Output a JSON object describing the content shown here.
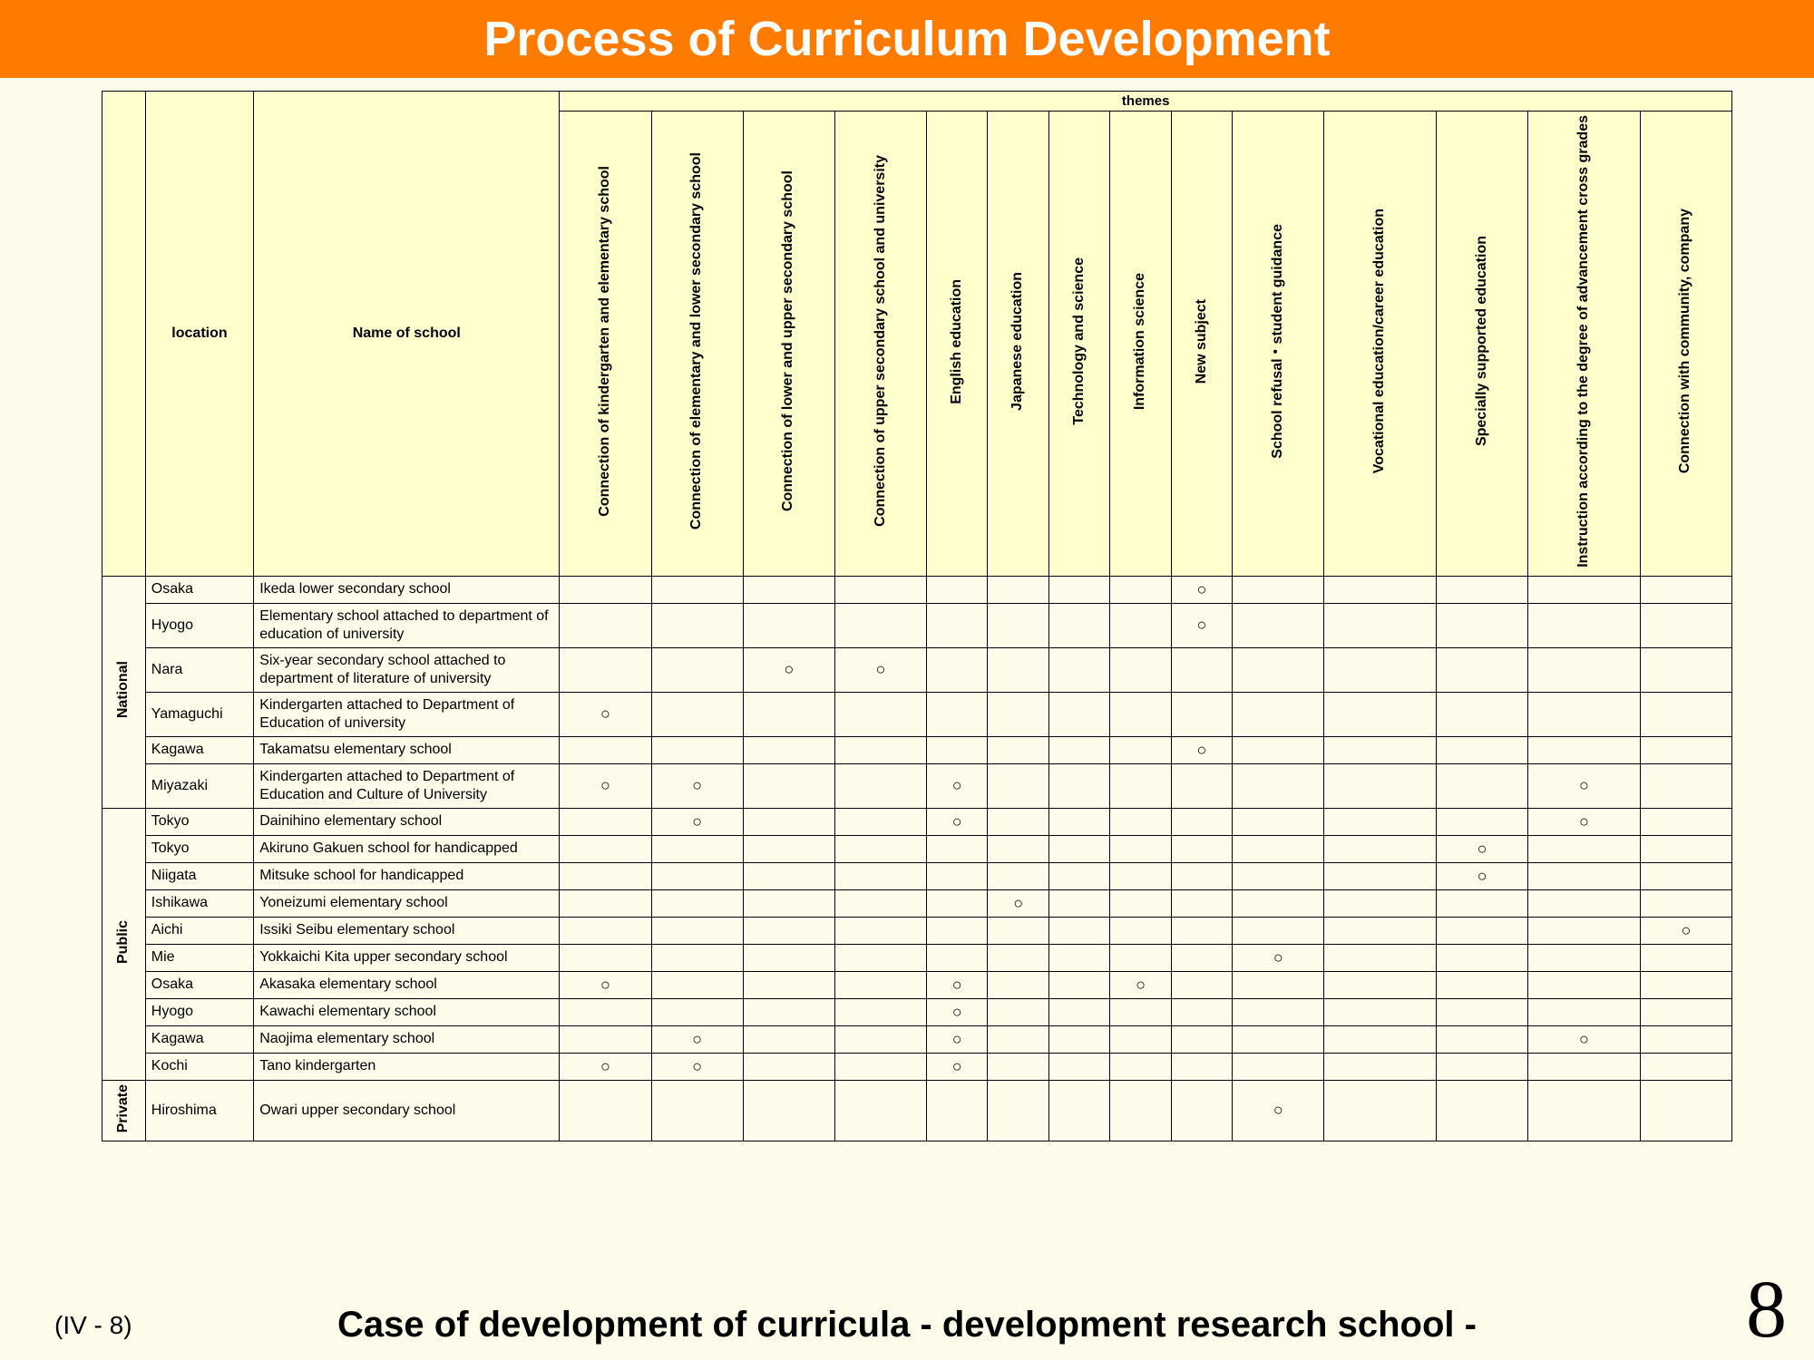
{
  "title": "Process of Curriculum Development",
  "colors": {
    "titleBg": "#ff7b00",
    "titleFg": "#ffffff",
    "pageBg": "#fdfbe9",
    "headerBg": "#feffcc",
    "border": "#000000"
  },
  "footer": {
    "left": "(IV - 8)",
    "center": "Case of development of curricula  - development research school -",
    "pageNum": "8"
  },
  "headers": {
    "location": "location",
    "school": "Name of school",
    "themesSuper": "themes"
  },
  "themes": [
    "Connection of kindergarten and elementary school",
    "Connection of elementary and lower secondary school",
    "Connection of lower and upper secondary school",
    "Connection of upper secondary school and university",
    "English education",
    "Japanese education",
    "Technology and science",
    "Information science",
    "New subject",
    "School refusal・student guidance",
    "Vocational education/career education",
    "Specially supported education",
    "Instruction according to the degree of advancement cross grades",
    "Connection with community, company"
  ],
  "mark": "○",
  "rows": [
    {
      "group": "National",
      "loc": "Osaka",
      "school": "Ikeda lower secondary school",
      "marks": [
        0,
        0,
        0,
        0,
        0,
        0,
        0,
        0,
        1,
        0,
        0,
        0,
        0,
        0
      ]
    },
    {
      "group": "National",
      "loc": "Hyogo",
      "school": "Elementary school attached to department of education of university",
      "marks": [
        0,
        0,
        0,
        0,
        0,
        0,
        0,
        0,
        1,
        0,
        0,
        0,
        0,
        0
      ]
    },
    {
      "group": "National",
      "loc": "Nara",
      "school": "Six-year secondary school attached to department of literature of university",
      "marks": [
        0,
        0,
        1,
        1,
        0,
        0,
        0,
        0,
        0,
        0,
        0,
        0,
        0,
        0
      ]
    },
    {
      "group": "National",
      "loc": "Yamaguchi",
      "school": "Kindergarten attached to Department of Education of university",
      "marks": [
        1,
        0,
        0,
        0,
        0,
        0,
        0,
        0,
        0,
        0,
        0,
        0,
        0,
        0
      ]
    },
    {
      "group": "National",
      "loc": "Kagawa",
      "school": "Takamatsu elementary school",
      "marks": [
        0,
        0,
        0,
        0,
        0,
        0,
        0,
        0,
        1,
        0,
        0,
        0,
        0,
        0
      ]
    },
    {
      "group": "National",
      "loc": "Miyazaki",
      "school": "Kindergarten attached to Department of Education and Culture of University",
      "marks": [
        1,
        1,
        0,
        0,
        1,
        0,
        0,
        0,
        0,
        0,
        0,
        0,
        1,
        0
      ]
    },
    {
      "group": "Public",
      "loc": "Tokyo",
      "school": "Dainihino elementary school",
      "marks": [
        0,
        1,
        0,
        0,
        1,
        0,
        0,
        0,
        0,
        0,
        0,
        0,
        1,
        0
      ]
    },
    {
      "group": "Public",
      "loc": "Tokyo",
      "school": "Akiruno Gakuen school for handicapped",
      "marks": [
        0,
        0,
        0,
        0,
        0,
        0,
        0,
        0,
        0,
        0,
        0,
        1,
        0,
        0
      ]
    },
    {
      "group": "Public",
      "loc": "Niigata",
      "school": "Mitsuke school for handicapped",
      "marks": [
        0,
        0,
        0,
        0,
        0,
        0,
        0,
        0,
        0,
        0,
        0,
        1,
        0,
        0
      ]
    },
    {
      "group": "Public",
      "loc": "Ishikawa",
      "school": "Yoneizumi elementary school",
      "marks": [
        0,
        0,
        0,
        0,
        0,
        1,
        0,
        0,
        0,
        0,
        0,
        0,
        0,
        0
      ]
    },
    {
      "group": "Public",
      "loc": "Aichi",
      "school": "Issiki Seibu elementary school",
      "marks": [
        0,
        0,
        0,
        0,
        0,
        0,
        0,
        0,
        0,
        0,
        0,
        0,
        0,
        1
      ]
    },
    {
      "group": "Public",
      "loc": "Mie",
      "school": "Yokkaichi Kita upper secondary school",
      "marks": [
        0,
        0,
        0,
        0,
        0,
        0,
        0,
        0,
        0,
        1,
        0,
        0,
        0,
        0
      ]
    },
    {
      "group": "Public",
      "loc": "Osaka",
      "school": "Akasaka elementary school",
      "marks": [
        1,
        0,
        0,
        0,
        1,
        0,
        0,
        1,
        0,
        0,
        0,
        0,
        0,
        0
      ]
    },
    {
      "group": "Public",
      "loc": "Hyogo",
      "school": "Kawachi elementary school",
      "marks": [
        0,
        0,
        0,
        0,
        1,
        0,
        0,
        0,
        0,
        0,
        0,
        0,
        0,
        0
      ]
    },
    {
      "group": "Public",
      "loc": "Kagawa",
      "school": "Naojima elementary school",
      "marks": [
        0,
        1,
        0,
        0,
        1,
        0,
        0,
        0,
        0,
        0,
        0,
        0,
        1,
        0
      ]
    },
    {
      "group": "Public",
      "loc": "Kochi",
      "school": "Tano kindergarten",
      "marks": [
        1,
        1,
        0,
        0,
        1,
        0,
        0,
        0,
        0,
        0,
        0,
        0,
        0,
        0
      ]
    },
    {
      "group": "Private",
      "loc": "Hiroshima",
      "school": "Owari upper secondary school",
      "marks": [
        0,
        0,
        0,
        0,
        0,
        0,
        0,
        0,
        0,
        1,
        0,
        0,
        0,
        0
      ]
    }
  ]
}
